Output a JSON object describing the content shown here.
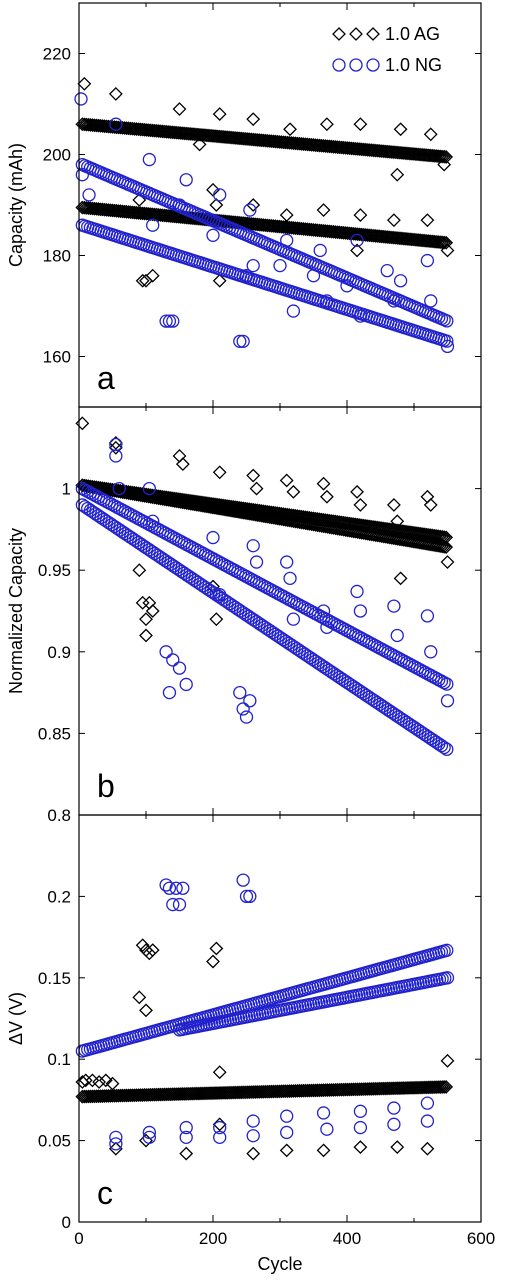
{
  "colors": {
    "ag": "#000000",
    "ng": "#2222cc"
  },
  "legend": [
    {
      "label": "1.0 AG",
      "marker": "diamond",
      "color": "#000000"
    },
    {
      "label": "1.0 NG",
      "marker": "circle",
      "color": "#2222cc"
    }
  ],
  "xaxis": {
    "label": "Cycle",
    "ticks": [
      "0",
      "200",
      "400",
      "600"
    ],
    "range": [
      0,
      600
    ]
  },
  "chart_data": [
    {
      "type": "scatter",
      "panel_label": "a",
      "ylabel": "Capacity (mAh)",
      "ylim": [
        150,
        230
      ],
      "yticks": [
        160,
        180,
        200,
        220
      ],
      "ytick_labels": [
        "160",
        "180",
        "200",
        "220"
      ],
      "legend_position": "top-right",
      "series": [
        {
          "name": "1.0 AG",
          "marker": "diamond",
          "color": "#000000",
          "trends": [
            {
              "x": [
                5,
                550
              ],
              "y": [
                206,
                199.5
              ],
              "spacing": 3
            },
            {
              "x": [
                5,
                550
              ],
              "y": [
                189.5,
                182.5
              ],
              "spacing": 3
            }
          ],
          "scatter": [
            [
              8,
              214
            ],
            [
              55,
              212
            ],
            [
              90,
              191
            ],
            [
              95,
              175
            ],
            [
              100,
              175
            ],
            [
              110,
              176
            ],
            [
              150,
              209
            ],
            [
              180,
              202
            ],
            [
              200,
              193
            ],
            [
              205,
              190
            ],
            [
              210,
              208
            ],
            [
              210,
              175
            ],
            [
              260,
              190
            ],
            [
              260,
              207
            ],
            [
              310,
              188
            ],
            [
              315,
              205
            ],
            [
              365,
              189
            ],
            [
              370,
              206
            ],
            [
              415,
              181
            ],
            [
              420,
              188
            ],
            [
              420,
              206
            ],
            [
              470,
              187
            ],
            [
              475,
              196
            ],
            [
              480,
              205
            ],
            [
              520,
              187
            ],
            [
              525,
              204
            ],
            [
              545,
              198
            ],
            [
              550,
              181
            ]
          ]
        },
        {
          "name": "1.0 NG",
          "marker": "circle",
          "color": "#2222cc",
          "trends": [
            {
              "x": [
                5,
                550
              ],
              "y": [
                198,
                167
              ],
              "spacing": 4
            },
            {
              "x": [
                5,
                550
              ],
              "y": [
                186,
                163
              ],
              "spacing": 4
            }
          ],
          "scatter": [
            [
              3,
              211
            ],
            [
              5,
              196
            ],
            [
              15,
              192
            ],
            [
              55,
              206
            ],
            [
              105,
              199
            ],
            [
              110,
              186
            ],
            [
              130,
              167
            ],
            [
              135,
              167
            ],
            [
              140,
              167
            ],
            [
              150,
              190
            ],
            [
              160,
              195
            ],
            [
              200,
              184
            ],
            [
              210,
              192
            ],
            [
              240,
              163
            ],
            [
              245,
              163
            ],
            [
              250,
              176
            ],
            [
              255,
              189
            ],
            [
              260,
              178
            ],
            [
              300,
              178
            ],
            [
              310,
              183
            ],
            [
              320,
              169
            ],
            [
              350,
              176
            ],
            [
              360,
              181
            ],
            [
              370,
              171
            ],
            [
              400,
              174
            ],
            [
              415,
              183
            ],
            [
              420,
              168
            ],
            [
              460,
              177
            ],
            [
              470,
              171
            ],
            [
              480,
              175
            ],
            [
              520,
              179
            ],
            [
              525,
              171
            ],
            [
              550,
              162
            ]
          ]
        }
      ]
    },
    {
      "type": "scatter",
      "panel_label": "b",
      "ylabel": "Normalized Capacity",
      "ylim": [
        0.8,
        1.05
      ],
      "yticks": [
        0.8,
        0.85,
        0.9,
        0.95,
        1.0
      ],
      "ytick_labels": [
        "0.8",
        "0.85",
        "0.9",
        "0.95",
        "1"
      ],
      "series": [
        {
          "name": "1.0 AG",
          "marker": "diamond",
          "color": "#000000",
          "trends": [
            {
              "x": [
                5,
                550
              ],
              "y": [
                1.002,
                0.964
              ],
              "spacing": 3
            },
            {
              "x": [
                5,
                550
              ],
              "y": [
                1.002,
                0.97
              ],
              "spacing": 3
            }
          ],
          "scatter": [
            [
              5,
              1.04
            ],
            [
              55,
              1.028
            ],
            [
              55,
              1.025
            ],
            [
              90,
              0.95
            ],
            [
              95,
              0.93
            ],
            [
              100,
              0.92
            ],
            [
              100,
              0.91
            ],
            [
              105,
              0.93
            ],
            [
              110,
              0.925
            ],
            [
              150,
              1.02
            ],
            [
              155,
              1.015
            ],
            [
              200,
              0.94
            ],
            [
              205,
              0.92
            ],
            [
              210,
              1.01
            ],
            [
              260,
              1.008
            ],
            [
              265,
              1.0
            ],
            [
              310,
              1.005
            ],
            [
              320,
              0.998
            ],
            [
              365,
              1.003
            ],
            [
              370,
              0.995
            ],
            [
              415,
              0.998
            ],
            [
              420,
              0.99
            ],
            [
              470,
              0.99
            ],
            [
              475,
              0.98
            ],
            [
              480,
              0.945
            ],
            [
              520,
              0.995
            ],
            [
              525,
              0.99
            ],
            [
              550,
              0.955
            ]
          ]
        },
        {
          "name": "1.0 NG",
          "marker": "circle",
          "color": "#2222cc",
          "trends": [
            {
              "x": [
                5,
                550
              ],
              "y": [
                1.0,
                0.88
              ],
              "spacing": 4
            },
            {
              "x": [
                5,
                550
              ],
              "y": [
                0.99,
                0.84
              ],
              "spacing": 4
            }
          ],
          "scatter": [
            [
              55,
              1.027
            ],
            [
              55,
              1.02
            ],
            [
              60,
              1.0
            ],
            [
              105,
              1.0
            ],
            [
              110,
              0.98
            ],
            [
              130,
              0.9
            ],
            [
              135,
              0.875
            ],
            [
              140,
              0.895
            ],
            [
              150,
              0.89
            ],
            [
              160,
              0.88
            ],
            [
              200,
              0.97
            ],
            [
              210,
              0.935
            ],
            [
              240,
              0.875
            ],
            [
              245,
              0.865
            ],
            [
              250,
              0.86
            ],
            [
              255,
              0.87
            ],
            [
              260,
              0.965
            ],
            [
              265,
              0.955
            ],
            [
              310,
              0.955
            ],
            [
              315,
              0.945
            ],
            [
              320,
              0.92
            ],
            [
              365,
              0.925
            ],
            [
              370,
              0.915
            ],
            [
              415,
              0.937
            ],
            [
              420,
              0.925
            ],
            [
              470,
              0.928
            ],
            [
              475,
              0.91
            ],
            [
              520,
              0.922
            ],
            [
              525,
              0.9
            ],
            [
              550,
              0.87
            ]
          ]
        }
      ]
    },
    {
      "type": "scatter",
      "panel_label": "c",
      "ylabel": "ΔV (V)",
      "ylim": [
        0,
        0.25
      ],
      "yticks": [
        0,
        0.05,
        0.1,
        0.15,
        0.2
      ],
      "ytick_labels": [
        "0",
        "0.05",
        "0.1",
        "0.15",
        "0.2"
      ],
      "series": [
        {
          "name": "1.0 AG",
          "marker": "diamond",
          "color": "#000000",
          "trends": [
            {
              "x": [
                5,
                550
              ],
              "y": [
                0.077,
                0.083
              ],
              "spacing": 3
            }
          ],
          "scatter": [
            [
              5,
              0.086
            ],
            [
              10,
              0.087
            ],
            [
              20,
              0.087
            ],
            [
              30,
              0.086
            ],
            [
              40,
              0.087
            ],
            [
              50,
              0.085
            ],
            [
              55,
              0.045
            ],
            [
              90,
              0.138
            ],
            [
              95,
              0.17
            ],
            [
              100,
              0.167
            ],
            [
              105,
              0.165
            ],
            [
              110,
              0.167
            ],
            [
              100,
              0.13
            ],
            [
              100,
              0.05
            ],
            [
              160,
              0.042
            ],
            [
              200,
              0.16
            ],
            [
              205,
              0.168
            ],
            [
              210,
              0.092
            ],
            [
              210,
              0.06
            ],
            [
              260,
              0.042
            ],
            [
              310,
              0.044
            ],
            [
              365,
              0.044
            ],
            [
              420,
              0.046
            ],
            [
              475,
              0.046
            ],
            [
              520,
              0.045
            ],
            [
              550,
              0.099
            ]
          ]
        },
        {
          "name": "1.0 NG",
          "marker": "circle",
          "color": "#2222cc",
          "trends": [
            {
              "x": [
                5,
                550
              ],
              "y": [
                0.105,
                0.167
              ],
              "spacing": 4
            },
            {
              "x": [
                150,
                550
              ],
              "y": [
                0.118,
                0.15
              ],
              "spacing": 4
            }
          ],
          "scatter": [
            [
              55,
              0.052
            ],
            [
              55,
              0.048
            ],
            [
              105,
              0.055
            ],
            [
              105,
              0.052
            ],
            [
              130,
              0.207
            ],
            [
              135,
              0.205
            ],
            [
              140,
              0.195
            ],
            [
              145,
              0.205
            ],
            [
              150,
              0.195
            ],
            [
              155,
              0.205
            ],
            [
              160,
              0.058
            ],
            [
              160,
              0.052
            ],
            [
              210,
              0.058
            ],
            [
              210,
              0.052
            ],
            [
              245,
              0.21
            ],
            [
              250,
              0.2
            ],
            [
              255,
              0.2
            ],
            [
              260,
              0.062
            ],
            [
              260,
              0.053
            ],
            [
              310,
              0.065
            ],
            [
              310,
              0.055
            ],
            [
              365,
              0.067
            ],
            [
              370,
              0.057
            ],
            [
              420,
              0.068
            ],
            [
              420,
              0.058
            ],
            [
              470,
              0.07
            ],
            [
              470,
              0.06
            ],
            [
              520,
              0.073
            ],
            [
              520,
              0.062
            ]
          ]
        }
      ]
    }
  ]
}
